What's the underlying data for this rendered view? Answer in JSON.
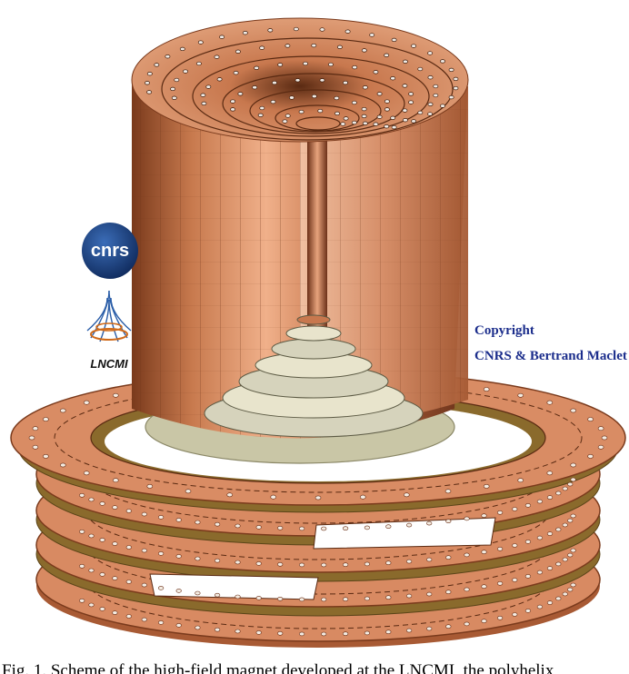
{
  "figure": {
    "logos": {
      "cnrs_text": "cnrs",
      "lncmi_text": "LNCMI"
    },
    "copyright": {
      "line1": "Copyright",
      "line2": "CNRS & Bertrand Maclet"
    },
    "colors": {
      "copper": "#c8784e",
      "copper_dark": "#8a4426",
      "insulator": "#8a6a2c",
      "base_ring": "#c9c6a6",
      "copyright_text": "#1c2e8c",
      "cnrs_blue": "#143a7c"
    }
  },
  "caption": {
    "text": "Fig. 1.   Scheme of the high-field magnet developed at the LNCMI, the polyhelix"
  }
}
